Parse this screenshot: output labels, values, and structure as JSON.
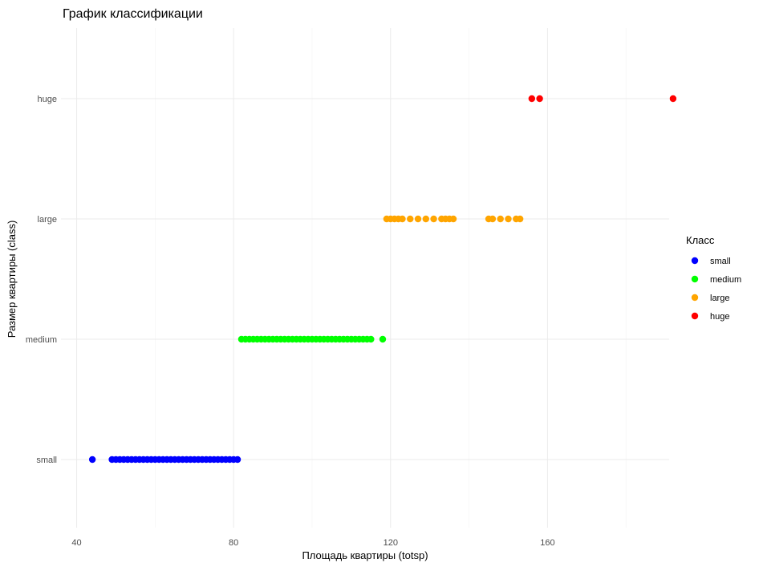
{
  "chart_data": {
    "type": "scatter",
    "title": "График классификации",
    "xlabel": "Площадь квартиры (totsp)",
    "ylabel": "Размер квартиры (class)",
    "xlim": [
      36,
      191
    ],
    "x_ticks": [
      40,
      80,
      120,
      160
    ],
    "x_tick_labels": [
      "40",
      "80",
      "120",
      "160"
    ],
    "categories": [
      "small",
      "medium",
      "large",
      "huge"
    ],
    "grid": true,
    "legend": {
      "title": "Класс",
      "position": "right"
    },
    "series": [
      {
        "name": "small",
        "color": "#0000FF",
        "y": "small",
        "x": [
          44,
          49,
          50,
          51,
          52,
          53,
          54,
          55,
          56,
          57,
          58,
          59,
          60,
          61,
          62,
          63,
          64,
          65,
          66,
          67,
          68,
          69,
          70,
          71,
          72,
          73,
          74,
          75,
          76,
          77,
          78,
          79,
          80,
          81
        ]
      },
      {
        "name": "medium",
        "color": "#00FF00",
        "y": "medium",
        "x": [
          82,
          83,
          84,
          85,
          86,
          87,
          88,
          89,
          90,
          91,
          92,
          93,
          94,
          95,
          96,
          97,
          98,
          99,
          100,
          101,
          102,
          103,
          104,
          105,
          106,
          107,
          108,
          109,
          110,
          111,
          112,
          113,
          114,
          115,
          118
        ]
      },
      {
        "name": "large",
        "color": "#FFA500",
        "y": "large",
        "x": [
          119,
          120,
          121,
          122,
          123,
          125,
          127,
          129,
          131,
          133,
          134,
          135,
          136,
          145,
          146,
          148,
          150,
          152,
          153
        ]
      },
      {
        "name": "huge",
        "color": "#FF0000",
        "y": "huge",
        "x": [
          156,
          158,
          192
        ]
      }
    ]
  }
}
